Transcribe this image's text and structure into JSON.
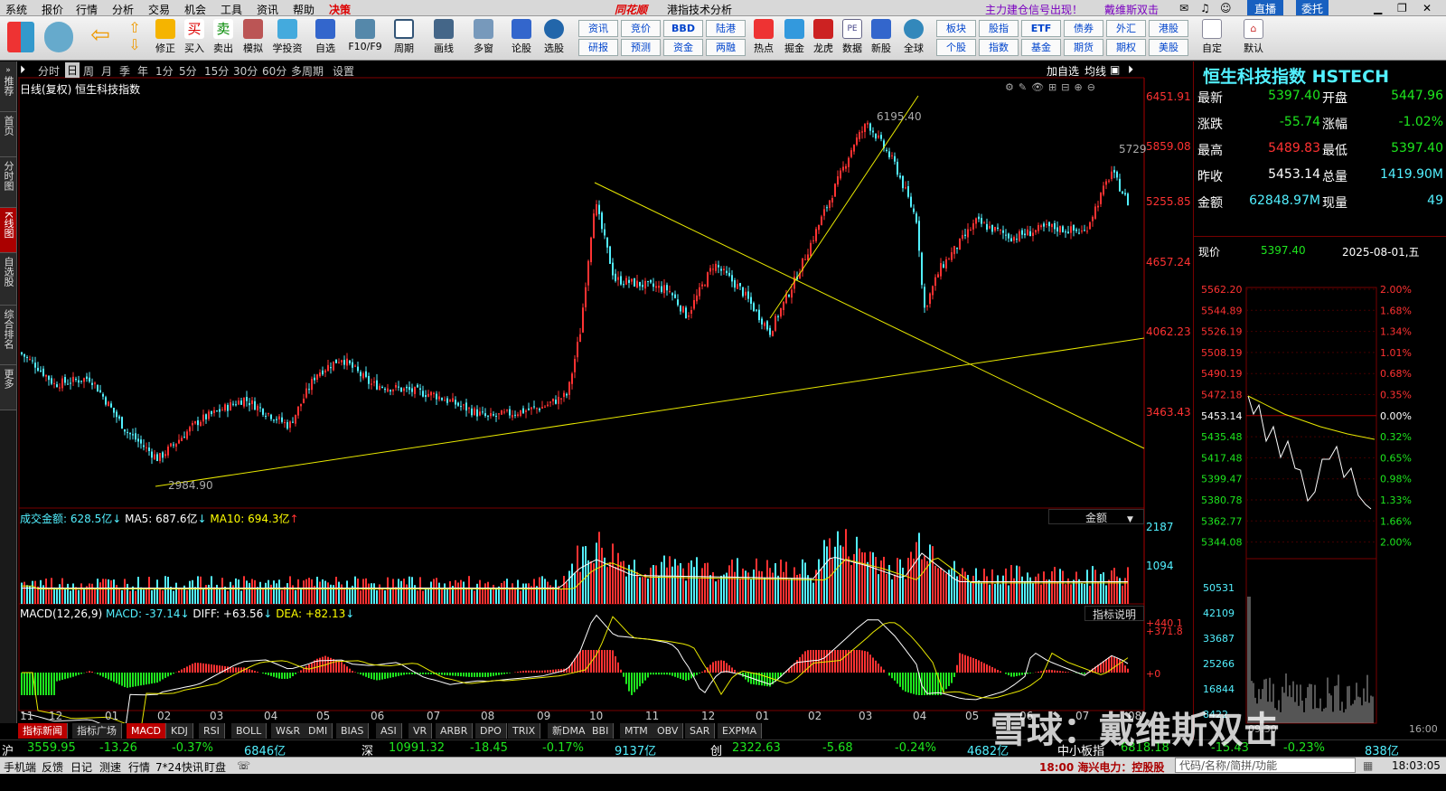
{
  "menu": [
    "系统",
    "报价",
    "行情",
    "分析",
    "交易",
    "机会",
    "工具",
    "资讯",
    "帮助",
    "决策"
  ],
  "brand": "同花顺",
  "window_title": "港指技术分析",
  "alerts": {
    "a1": "主力建仓信号出现！",
    "a2": "戴维斯双击"
  },
  "win_buttons": {
    "b1": "直播",
    "b2": "委托"
  },
  "toolbar_items": [
    "修正",
    "买入",
    "卖出",
    "模拟",
    "学投资",
    "自选",
    "F10/F9",
    "周期",
    "画线",
    "多窗",
    "论股",
    "选股",
    "热点",
    "掘金",
    "龙虎",
    "数据",
    "新股",
    "全球",
    "自定",
    "默认"
  ],
  "toolbar_small": [
    "资讯",
    "竞价",
    "BBD",
    "陆港",
    "研报",
    "预测",
    "资金",
    "两融",
    "板块",
    "股指",
    "ETF",
    "债券",
    "外汇",
    "港股",
    "个股",
    "指数",
    "基金",
    "期货",
    "期权",
    "美股"
  ],
  "left_tabs": [
    "推荐",
    "首页",
    "分时图",
    "K线图",
    "自选股",
    "综合排名",
    "更多"
  ],
  "periods": [
    "分时",
    "日",
    "周",
    "月",
    "季",
    "年",
    "1分",
    "5分",
    "15分",
    "30分",
    "60分",
    "多周期",
    "设置"
  ],
  "period_selected": "日",
  "chart_tools": {
    "t1": "加自选",
    "t2": "均线"
  },
  "chart_header": "日线(复权)  恒生科技指数",
  "y_ticks": [
    "6451.91",
    "5859.08",
    "5255.85",
    "4657.24",
    "4062.23",
    "3463.43"
  ],
  "marks": {
    "high": "6195.40",
    "low": "2984.90",
    "recent": "5729"
  },
  "x_ticks": [
    "11",
    "12",
    "01",
    "02",
    "03",
    "04",
    "05",
    "06",
    "07",
    "08",
    "09",
    "10",
    "11",
    "12",
    "01",
    "02",
    "03",
    "04",
    "05",
    "06",
    "07",
    "08"
  ],
  "volume": {
    "label": "成交金额: 628.5亿",
    "ma5": "MA5: 687.6亿",
    "ma10": "MA10: 694.3亿",
    "selector": "金额",
    "ticks": [
      "2187",
      "1094"
    ]
  },
  "macd": {
    "label": "MACD(12,26,9)",
    "macd": "MACD: -37.14",
    "diff": "DIFF: +63.56",
    "dea": "DEA: +82.13",
    "help": "指标说明",
    "ticks": [
      "+440.1",
      "+371.8",
      "+0"
    ]
  },
  "indicator_tabs": [
    "指标新闻",
    "指标广场",
    "MACD",
    "KDJ",
    "RSI",
    "BOLL",
    "W&R",
    "DMI",
    "BIAS",
    "ASI",
    "VR",
    "ARBR",
    "DPO",
    "TRIX",
    "新DMA",
    "BBI",
    "MTM",
    "OBV",
    "SAR",
    "EXPMA"
  ],
  "quote": {
    "title": "恒生科技指数 HSTECH",
    "rows": [
      {
        "l1": "最新",
        "v1": "5397.40",
        "l2": "开盘",
        "v2": "5447.96",
        "c1": "grn",
        "c2": "grn"
      },
      {
        "l1": "涨跌",
        "v1": "-55.74",
        "l2": "涨幅",
        "v2": "-1.02%",
        "c1": "grn",
        "c2": "grn"
      },
      {
        "l1": "最高",
        "v1": "5489.83",
        "l2": "最低",
        "v2": "5397.40",
        "c1": "red",
        "c2": "grn"
      },
      {
        "l1": "昨收",
        "v1": "5453.14",
        "l2": "总量",
        "v2": "1419.90M",
        "c1": "wht",
        "c2": "cyan"
      },
      {
        "l1": "金额",
        "v1": "62848.97M",
        "l2": "现量",
        "v2": "49",
        "c1": "cyan",
        "c2": "cyan"
      }
    ],
    "price_label": "现价",
    "price": "5397.40",
    "date": "2025-08-01,五"
  },
  "intraday": {
    "prices": [
      "5562.20",
      "5544.89",
      "5526.19",
      "5508.19",
      "5490.19",
      "5472.18",
      "5453.14",
      "5435.48",
      "5417.48",
      "5399.47",
      "5380.78",
      "5362.77",
      "5344.08"
    ],
    "pcts": [
      "2.00%",
      "1.68%",
      "1.34%",
      "1.01%",
      "0.68%",
      "0.35%",
      "0.00%",
      "0.32%",
      "0.65%",
      "0.98%",
      "1.33%",
      "1.66%",
      "2.00%"
    ],
    "vols": [
      "50531",
      "42109",
      "33687",
      "25266",
      "16844",
      "8422"
    ],
    "open_time": "09:30",
    "close_time": "16:00"
  },
  "index_bar": [
    {
      "n": "沪",
      "v": "3559.95",
      "c": "-13.26",
      "p": "-0.37%",
      "a": "6846亿"
    },
    {
      "n": "深",
      "v": "10991.32",
      "c": "-18.45",
      "p": "-0.17%",
      "a": "9137亿"
    },
    {
      "n": "创",
      "v": "2322.63",
      "c": "-5.68",
      "p": "-0.24%",
      "a": "4682亿"
    },
    {
      "n": "中小板指",
      "v": "6818.18",
      "c": "-15.43",
      "p": "-0.23%",
      "a": "838亿"
    }
  ],
  "status": [
    "手机端",
    "反馈",
    "日记",
    "测速",
    "行情",
    "7*24快讯",
    "盯盘"
  ],
  "news": "18:00 海兴电力：控股股",
  "search_placeholder": "代码/名称/简拼/功能",
  "clock": "18:03:05",
  "watermark": "雪球：戴维斯双击",
  "colors": {
    "up": "#ff3232",
    "down": "#52f0ff",
    "trend": "#e8e800",
    "axis": "#b00000"
  }
}
